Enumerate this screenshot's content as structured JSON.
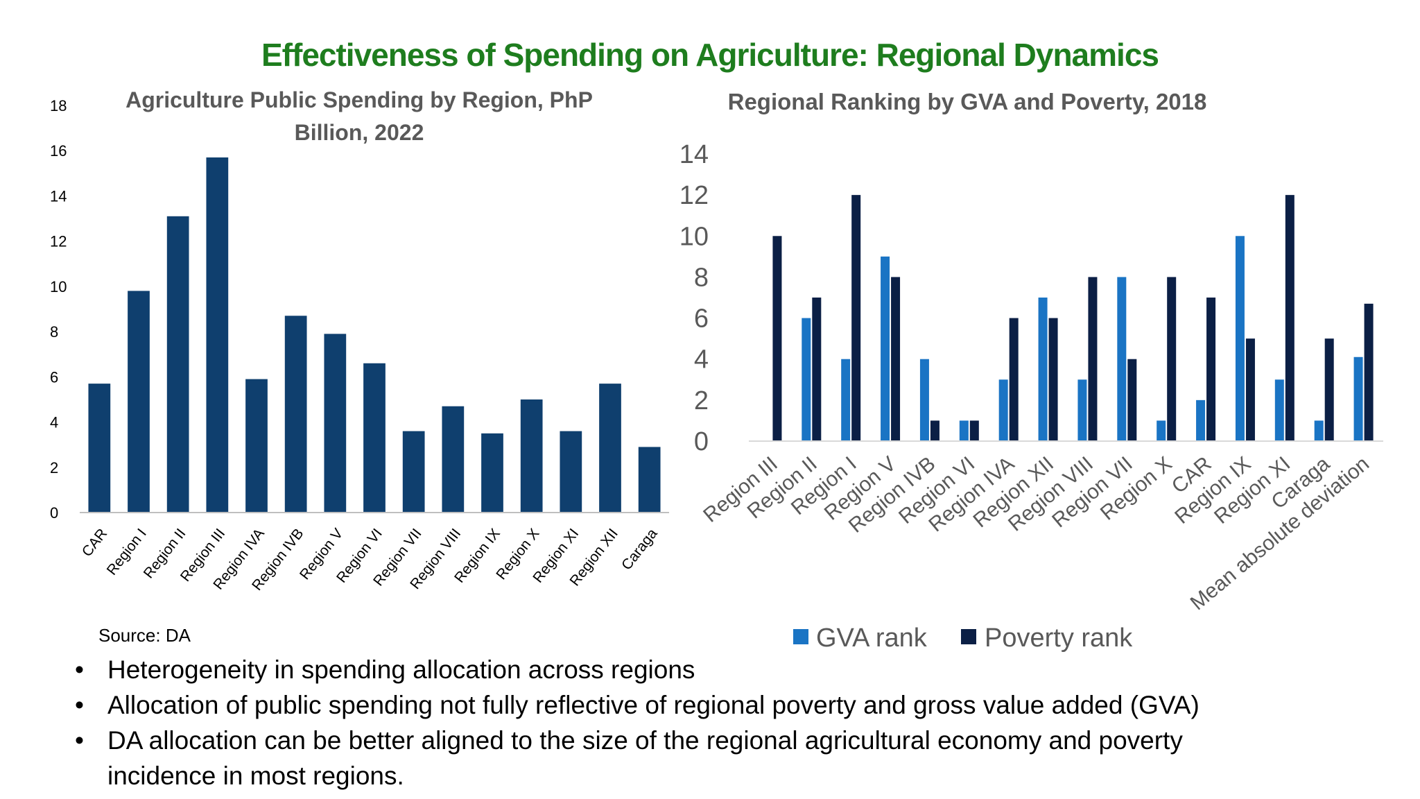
{
  "slide": {
    "title": "Effectiveness of Spending on Agriculture: Regional Dynamics",
    "source": "Source: DA",
    "bullets": [
      "Heterogeneity in spending allocation across regions",
      "Allocation of public spending not fully reflective of regional poverty and gross value added (GVA)",
      "DA allocation can be better aligned to the size of the regional agricultural economy and poverty",
      "incidence in most regions."
    ],
    "bullet_symbol": "•"
  },
  "colors": {
    "title_green": "#1e7d1e",
    "spending_bar": "#0f3f6e",
    "gva_rank": "#1a74c4",
    "poverty_rank": "#0b1f45",
    "chart_title_gray": "#595959"
  },
  "chart_data": [
    {
      "type": "bar",
      "title_lines": [
        "Agriculture Public Spending by Region, PhP",
        "Billion, 2022"
      ],
      "categories": [
        "CAR",
        "Region I",
        "Region II",
        "Region III",
        "Region IVA",
        "Region IVB",
        "Region V",
        "Region VI",
        "Region VII",
        "Region VIII",
        "Region IX",
        "Region X",
        "Region XI",
        "Region XII",
        "Caraga"
      ],
      "values": [
        5.7,
        9.8,
        13.1,
        15.7,
        5.9,
        8.7,
        7.9,
        6.6,
        3.6,
        4.7,
        3.5,
        5.0,
        3.6,
        5.7,
        2.9
      ],
      "ylim": [
        0,
        18
      ],
      "yticks": [
        0,
        2,
        4,
        6,
        8,
        10,
        12,
        14,
        16,
        18
      ],
      "grid": false,
      "xlabel": "",
      "ylabel": ""
    },
    {
      "type": "bar",
      "title": "Regional Ranking by GVA and Poverty, 2018",
      "categories": [
        "Region III",
        "Region II",
        "Region I",
        "Region V",
        "Region IVB",
        "Region VI",
        "Region IVA",
        "Region XII",
        "Region VIII",
        "Region VII",
        "Region X",
        "CAR",
        "Region IX",
        "Region XI",
        "Caraga",
        "Mean absolute deviation"
      ],
      "series": [
        {
          "name": "GVA rank",
          "values": [
            0,
            6,
            4,
            9,
            4,
            1,
            3,
            7,
            3,
            8,
            1,
            2,
            10,
            3,
            1,
            4.1
          ]
        },
        {
          "name": "Poverty rank",
          "values": [
            10,
            7,
            12,
            8,
            1,
            1,
            6,
            6,
            8,
            4,
            8,
            7,
            5,
            12,
            5,
            6.7
          ]
        }
      ],
      "ylim": [
        0,
        14
      ],
      "yticks": [
        0,
        2,
        4,
        6,
        8,
        10,
        12,
        14
      ],
      "grid": false,
      "legend_position": "bottom",
      "xlabel": "",
      "ylabel": ""
    }
  ]
}
